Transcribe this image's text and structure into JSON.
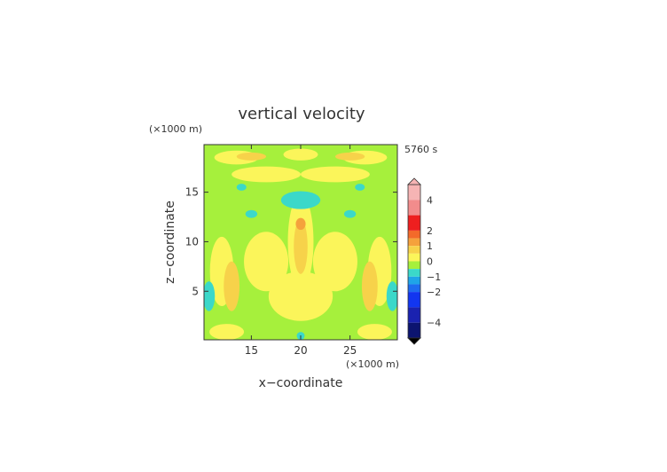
{
  "chart_data": {
    "type": "heatmap",
    "title": "vertical velocity",
    "time_label": "5760 s",
    "xlabel": "x−coordinate",
    "ylabel": "z−coordinate",
    "x_unit": "(×1000 m)",
    "y_unit": "(×1000 m)",
    "xlim": [
      10.2,
      29.8
    ],
    "ylim": [
      0.1,
      19.8
    ],
    "x_ticks": [
      15,
      20,
      25
    ],
    "y_ticks": [
      5,
      10,
      15
    ],
    "colorbar": {
      "ticks": [
        "4",
        "2",
        "1",
        "0",
        "−1",
        "−2",
        "−4"
      ],
      "tick_values": [
        4,
        2,
        1,
        0,
        -1,
        -2,
        -4
      ],
      "levels": [
        {
          "lo": 4,
          "hi": 5,
          "color": "#f6b4b4"
        },
        {
          "lo": 3,
          "hi": 4,
          "color": "#f28c8c"
        },
        {
          "lo": 2,
          "hi": 3,
          "color": "#ee1f1f"
        },
        {
          "lo": 1.5,
          "hi": 2,
          "color": "#f36a2a"
        },
        {
          "lo": 1,
          "hi": 1.5,
          "color": "#f5a13c"
        },
        {
          "lo": 0.5,
          "hi": 1,
          "color": "#f7d24a"
        },
        {
          "lo": 0,
          "hi": 0.5,
          "color": "#fbf55a"
        },
        {
          "lo": -0.5,
          "hi": 0,
          "color": "#a6f03c"
        },
        {
          "lo": -1,
          "hi": -0.5,
          "color": "#3bd8c9"
        },
        {
          "lo": -1.5,
          "hi": -1,
          "color": "#1fa5e8"
        },
        {
          "lo": -2,
          "hi": -1.5,
          "color": "#1e6cf0"
        },
        {
          "lo": -3,
          "hi": -2,
          "color": "#1236f0"
        },
        {
          "lo": -4,
          "hi": -3,
          "color": "#1a22b0"
        },
        {
          "lo": -5,
          "hi": -4,
          "color": "#0c1470"
        }
      ]
    },
    "background_value": -0.25,
    "features": [
      {
        "x": 20.0,
        "z": 10.0,
        "w": 2.6,
        "h": 9.5,
        "value": 0.3
      },
      {
        "x": 16.5,
        "z": 8.0,
        "w": 4.5,
        "h": 6.0,
        "value": 0.3
      },
      {
        "x": 23.5,
        "z": 8.0,
        "w": 4.5,
        "h": 6.0,
        "value": 0.3
      },
      {
        "x": 20.0,
        "z": 4.5,
        "w": 6.5,
        "h": 5.0,
        "value": 0.3
      },
      {
        "x": 12.0,
        "z": 7.0,
        "w": 2.4,
        "h": 7.0,
        "value": 0.3
      },
      {
        "x": 28.0,
        "z": 7.0,
        "w": 2.4,
        "h": 7.0,
        "value": 0.3
      },
      {
        "x": 12.5,
        "z": 0.9,
        "w": 3.5,
        "h": 1.6,
        "value": 0.3
      },
      {
        "x": 27.5,
        "z": 0.9,
        "w": 3.5,
        "h": 1.6,
        "value": 0.3
      },
      {
        "x": 16.5,
        "z": 16.8,
        "w": 7.0,
        "h": 1.6,
        "value": 0.3
      },
      {
        "x": 23.5,
        "z": 16.8,
        "w": 7.0,
        "h": 1.6,
        "value": 0.3
      },
      {
        "x": 13.5,
        "z": 18.5,
        "w": 4.5,
        "h": 1.4,
        "value": 0.3
      },
      {
        "x": 26.5,
        "z": 18.5,
        "w": 4.5,
        "h": 1.4,
        "value": 0.3
      },
      {
        "x": 20.0,
        "z": 18.8,
        "w": 3.5,
        "h": 1.2,
        "value": 0.3
      },
      {
        "x": 13.0,
        "z": 5.5,
        "w": 1.6,
        "h": 5.0,
        "value": 0.7
      },
      {
        "x": 27.0,
        "z": 5.5,
        "w": 1.6,
        "h": 5.0,
        "value": 0.7
      },
      {
        "x": 20.0,
        "z": 9.5,
        "w": 1.4,
        "h": 5.5,
        "value": 0.7
      },
      {
        "x": 20.0,
        "z": 11.8,
        "w": 1.0,
        "h": 1.2,
        "value": 1.2
      },
      {
        "x": 15.0,
        "z": 18.6,
        "w": 3.0,
        "h": 0.8,
        "value": 0.7
      },
      {
        "x": 25.0,
        "z": 18.6,
        "w": 3.0,
        "h": 0.8,
        "value": 0.7
      },
      {
        "x": 20.0,
        "z": 14.2,
        "w": 4.0,
        "h": 1.8,
        "value": -0.7
      },
      {
        "x": 10.7,
        "z": 4.5,
        "w": 1.2,
        "h": 3.0,
        "value": -0.7
      },
      {
        "x": 29.3,
        "z": 4.5,
        "w": 1.2,
        "h": 3.0,
        "value": -0.7
      },
      {
        "x": 15.0,
        "z": 12.8,
        "w": 1.2,
        "h": 0.8,
        "value": -0.7
      },
      {
        "x": 25.0,
        "z": 12.8,
        "w": 1.2,
        "h": 0.8,
        "value": -0.7
      },
      {
        "x": 20.0,
        "z": 0.5,
        "w": 0.8,
        "h": 0.8,
        "value": -0.7
      },
      {
        "x": 14.0,
        "z": 15.5,
        "w": 1.0,
        "h": 0.7,
        "value": -0.7
      },
      {
        "x": 26.0,
        "z": 15.5,
        "w": 1.0,
        "h": 0.7,
        "value": -0.7
      }
    ]
  }
}
